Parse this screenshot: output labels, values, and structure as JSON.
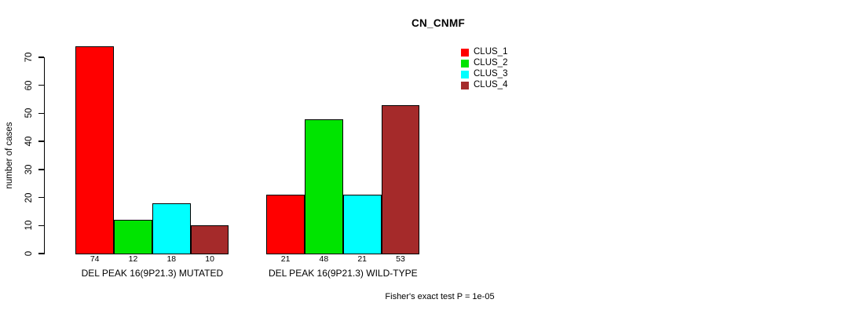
{
  "chart_data": {
    "type": "bar",
    "title": "CN_CNMF",
    "ylabel": "number of cases",
    "xlabel": "",
    "ylim": [
      0,
      70
    ],
    "yticks": [
      0,
      10,
      20,
      30,
      40,
      50,
      60,
      70
    ],
    "grid": false,
    "legend_position": "top-right",
    "categories": [
      "DEL PEAK 16(9P21.3) MUTATED",
      "DEL PEAK 16(9P21.3) WILD-TYPE"
    ],
    "series": [
      {
        "name": "CLUS_1",
        "color": "#FF0000",
        "values": [
          74,
          21
        ]
      },
      {
        "name": "CLUS_2",
        "color": "#00E400",
        "values": [
          12,
          48
        ]
      },
      {
        "name": "CLUS_3",
        "color": "#00FFFF",
        "values": [
          18,
          21
        ]
      },
      {
        "name": "CLUS_4",
        "color": "#A52A2A",
        "values": [
          10,
          53
        ]
      }
    ],
    "show_value_labels": true,
    "annotation": "Fisher's exact test P = 1e-05"
  }
}
